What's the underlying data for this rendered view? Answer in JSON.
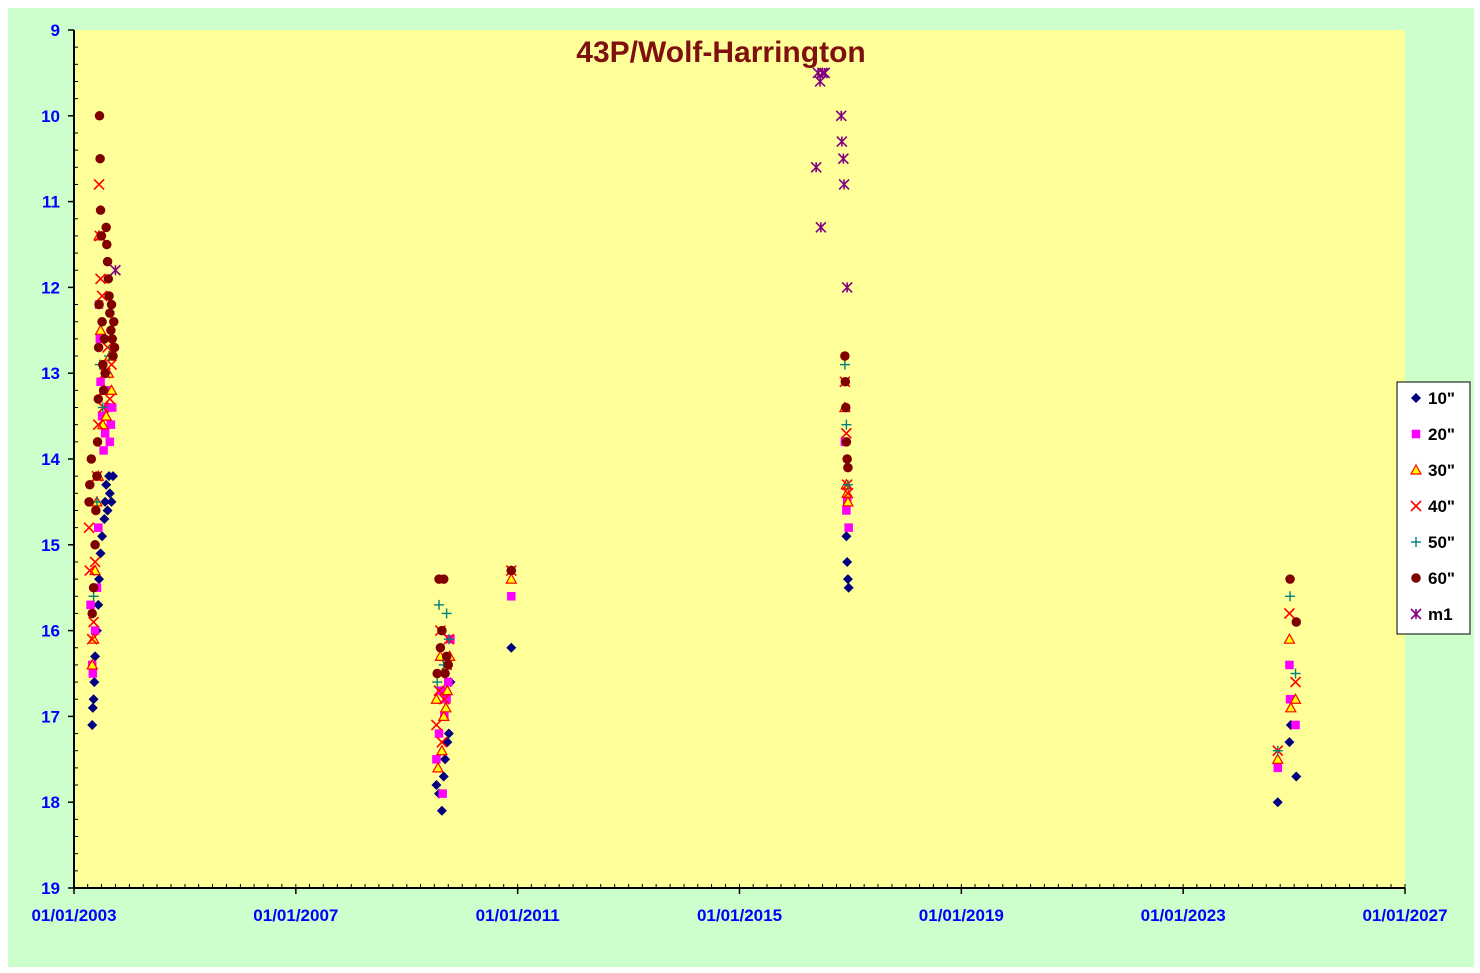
{
  "colors": {
    "outer_background": "#ccffcc",
    "plot_background": "#ffff99",
    "title": "#7f1010",
    "tick_labels": "#0000ff",
    "axis": "#000000"
  },
  "chart_data": {
    "type": "scatter",
    "title": "43P/Wolf-Harrington",
    "xlabel": "",
    "ylabel": "",
    "x_axis": {
      "type": "date",
      "range": [
        "2003-01-01",
        "2027-01-01"
      ],
      "ticks": [
        "2003-01-01",
        "2007-01-01",
        "2011-01-01",
        "2015-01-01",
        "2019-01-01",
        "2023-01-01",
        "2027-01-01"
      ],
      "tick_labels": [
        "01/01/2003",
        "01/01/2007",
        "01/01/2011",
        "01/01/2015",
        "01/01/2019",
        "01/01/2023",
        "01/01/2027"
      ]
    },
    "y_axis": {
      "reversed": true,
      "range": [
        9,
        19
      ],
      "ticks": [
        9,
        10,
        11,
        12,
        13,
        14,
        15,
        16,
        17,
        18,
        19
      ],
      "tick_labels": [
        "9",
        "10",
        "11",
        "12",
        "13",
        "14",
        "15",
        "16",
        "17",
        "18",
        "19"
      ]
    },
    "grid": false,
    "legend_position": "right",
    "series": [
      {
        "name": "10\"",
        "marker": "diamond",
        "color": "#000080",
        "points": [
          [
            "2003-05-01",
            17.1
          ],
          [
            "2003-05-05",
            16.9
          ],
          [
            "2003-05-10",
            16.8
          ],
          [
            "2003-05-15",
            16.6
          ],
          [
            "2003-05-20",
            16.3
          ],
          [
            "2003-06-01",
            16.0
          ],
          [
            "2003-06-10",
            15.7
          ],
          [
            "2003-06-15",
            15.4
          ],
          [
            "2003-06-25",
            15.1
          ],
          [
            "2003-07-05",
            14.9
          ],
          [
            "2003-07-20",
            14.7
          ],
          [
            "2003-07-25",
            14.5
          ],
          [
            "2003-08-01",
            14.3
          ],
          [
            "2003-08-10",
            14.6
          ],
          [
            "2003-08-20",
            14.2
          ],
          [
            "2003-08-25",
            14.4
          ],
          [
            "2003-09-05",
            14.5
          ],
          [
            "2003-09-15",
            14.2
          ],
          [
            "2009-07-15",
            17.8
          ],
          [
            "2009-08-01",
            17.9
          ],
          [
            "2009-08-20",
            18.1
          ],
          [
            "2009-09-01",
            17.7
          ],
          [
            "2009-09-10",
            17.5
          ],
          [
            "2009-09-25",
            17.3
          ],
          [
            "2009-10-05",
            17.2
          ],
          [
            "2009-10-15",
            16.6
          ],
          [
            "2010-11-20",
            16.2
          ],
          [
            "2016-12-05",
            14.9
          ],
          [
            "2016-12-10",
            15.2
          ],
          [
            "2016-12-15",
            15.4
          ],
          [
            "2016-12-20",
            15.5
          ],
          [
            "2024-09-15",
            18.0
          ],
          [
            "2024-12-01",
            17.3
          ],
          [
            "2024-12-10",
            17.1
          ],
          [
            "2025-01-15",
            17.7
          ]
        ]
      },
      {
        "name": "20\"",
        "marker": "square",
        "color": "#ff00ff",
        "points": [
          [
            "2003-04-20",
            15.7
          ],
          [
            "2003-05-01",
            16.4
          ],
          [
            "2003-05-05",
            16.5
          ],
          [
            "2003-05-20",
            16.0
          ],
          [
            "2003-06-01",
            15.5
          ],
          [
            "2003-06-10",
            14.8
          ],
          [
            "2003-06-15",
            12.2
          ],
          [
            "2003-06-20",
            12.6
          ],
          [
            "2003-06-25",
            13.1
          ],
          [
            "2003-07-05",
            13.5
          ],
          [
            "2003-07-15",
            13.9
          ],
          [
            "2003-07-25",
            13.7
          ],
          [
            "2003-08-01",
            13.2
          ],
          [
            "2003-08-15",
            13.4
          ],
          [
            "2003-08-25",
            13.8
          ],
          [
            "2003-09-01",
            13.6
          ],
          [
            "2003-09-10",
            13.4
          ],
          [
            "2009-07-15",
            17.5
          ],
          [
            "2009-08-01",
            17.2
          ],
          [
            "2009-08-15",
            16.7
          ],
          [
            "2009-08-25",
            17.9
          ],
          [
            "2009-09-05",
            17.0
          ],
          [
            "2009-09-20",
            16.8
          ],
          [
            "2009-10-01",
            16.6
          ],
          [
            "2009-10-15",
            16.1
          ],
          [
            "2010-11-20",
            15.6
          ],
          [
            "2016-11-25",
            13.8
          ],
          [
            "2016-12-05",
            14.6
          ],
          [
            "2016-12-10",
            14.5
          ],
          [
            "2016-12-20",
            14.8
          ],
          [
            "2024-09-15",
            17.6
          ],
          [
            "2024-12-01",
            16.4
          ],
          [
            "2024-12-05",
            16.8
          ],
          [
            "2025-01-10",
            17.1
          ]
        ]
      },
      {
        "name": "30\"",
        "marker": "triangle",
        "color": "#ffff00",
        "stroke": "#ff0000",
        "points": [
          [
            "2003-05-01",
            16.4
          ],
          [
            "2003-05-10",
            16.1
          ],
          [
            "2003-05-20",
            15.3
          ],
          [
            "2003-06-01",
            14.5
          ],
          [
            "2003-06-10",
            14.2
          ],
          [
            "2003-06-15",
            11.4
          ],
          [
            "2003-06-25",
            12.5
          ],
          [
            "2003-07-10",
            13.6
          ],
          [
            "2003-07-20",
            13.2
          ],
          [
            "2003-08-01",
            13.5
          ],
          [
            "2003-08-15",
            13.0
          ],
          [
            "2003-08-25",
            12.8
          ],
          [
            "2003-09-05",
            13.2
          ],
          [
            "2009-07-15",
            16.8
          ],
          [
            "2009-07-25",
            17.6
          ],
          [
            "2009-08-10",
            16.3
          ],
          [
            "2009-08-20",
            17.4
          ],
          [
            "2009-09-01",
            17.0
          ],
          [
            "2009-09-15",
            16.9
          ],
          [
            "2009-09-25",
            16.7
          ],
          [
            "2009-10-10",
            16.3
          ],
          [
            "2010-11-20",
            15.4
          ],
          [
            "2016-11-25",
            13.4
          ],
          [
            "2016-12-05",
            14.3
          ],
          [
            "2016-12-10",
            14.4
          ],
          [
            "2016-12-15",
            14.5
          ],
          [
            "2024-09-15",
            17.5
          ],
          [
            "2024-12-01",
            16.1
          ],
          [
            "2024-12-10",
            16.9
          ],
          [
            "2025-01-10",
            16.8
          ]
        ]
      },
      {
        "name": "40\"",
        "marker": "x",
        "color": "#ff0000",
        "points": [
          [
            "2003-04-10",
            14.8
          ],
          [
            "2003-04-15",
            15.3
          ],
          [
            "2003-05-01",
            16.1
          ],
          [
            "2003-05-10",
            15.9
          ],
          [
            "2003-05-20",
            15.2
          ],
          [
            "2003-06-01",
            14.2
          ],
          [
            "2003-06-10",
            13.6
          ],
          [
            "2003-06-15",
            10.8
          ],
          [
            "2003-06-20",
            11.4
          ],
          [
            "2003-06-25",
            11.9
          ],
          [
            "2003-07-05",
            12.1
          ],
          [
            "2003-07-15",
            13.4
          ],
          [
            "2003-07-25",
            13.0
          ],
          [
            "2003-08-10",
            12.7
          ],
          [
            "2003-08-25",
            13.3
          ],
          [
            "2003-09-05",
            12.9
          ],
          [
            "2009-07-15",
            17.1
          ],
          [
            "2009-08-01",
            16.7
          ],
          [
            "2009-08-10",
            16.0
          ],
          [
            "2009-08-20",
            17.3
          ],
          [
            "2009-09-05",
            16.8
          ],
          [
            "2009-09-20",
            16.4
          ],
          [
            "2009-10-05",
            16.1
          ],
          [
            "2010-11-20",
            15.3
          ],
          [
            "2016-11-25",
            13.1
          ],
          [
            "2016-12-05",
            13.7
          ],
          [
            "2016-12-10",
            14.3
          ],
          [
            "2016-12-15",
            14.4
          ],
          [
            "2024-09-15",
            17.4
          ],
          [
            "2024-12-01",
            15.8
          ],
          [
            "2025-01-10",
            16.6
          ]
        ]
      },
      {
        "name": "50\"",
        "marker": "plus",
        "color": "#008080",
        "points": [
          [
            "2003-05-10",
            15.6
          ],
          [
            "2003-06-01",
            14.5
          ],
          [
            "2003-06-20",
            12.9
          ],
          [
            "2003-07-10",
            13.4
          ],
          [
            "2003-08-01",
            13.0
          ],
          [
            "2003-08-20",
            12.8
          ],
          [
            "2003-09-10",
            12.7
          ],
          [
            "2009-07-20",
            16.6
          ],
          [
            "2009-08-01",
            15.7
          ],
          [
            "2009-09-01",
            16.4
          ],
          [
            "2009-09-20",
            15.8
          ],
          [
            "2009-10-05",
            16.1
          ],
          [
            "2010-11-20",
            15.3
          ],
          [
            "2016-11-25",
            12.9
          ],
          [
            "2016-12-05",
            13.6
          ],
          [
            "2016-12-15",
            14.3
          ],
          [
            "2024-09-15",
            17.4
          ],
          [
            "2024-12-05",
            15.6
          ],
          [
            "2025-01-10",
            16.5
          ]
        ]
      },
      {
        "name": "60\"",
        "marker": "circle",
        "color": "#800000",
        "points": [
          [
            "2003-04-10",
            14.5
          ],
          [
            "2003-04-15",
            14.3
          ],
          [
            "2003-04-25",
            14.0
          ],
          [
            "2003-05-01",
            15.8
          ],
          [
            "2003-05-10",
            15.5
          ],
          [
            "2003-05-20",
            15.0
          ],
          [
            "2003-05-25",
            14.6
          ],
          [
            "2003-06-01",
            14.2
          ],
          [
            "2003-06-05",
            13.8
          ],
          [
            "2003-06-10",
            13.3
          ],
          [
            "2003-06-12",
            12.7
          ],
          [
            "2003-06-15",
            12.2
          ],
          [
            "2003-06-18",
            10.0
          ],
          [
            "2003-06-22",
            10.5
          ],
          [
            "2003-06-25",
            11.1
          ],
          [
            "2003-07-01",
            11.4
          ],
          [
            "2003-07-05",
            12.4
          ],
          [
            "2003-07-10",
            12.9
          ],
          [
            "2003-07-15",
            13.2
          ],
          [
            "2003-07-20",
            12.6
          ],
          [
            "2003-07-25",
            13.0
          ],
          [
            "2003-08-01",
            11.3
          ],
          [
            "2003-08-05",
            11.5
          ],
          [
            "2003-08-10",
            11.7
          ],
          [
            "2003-08-15",
            11.9
          ],
          [
            "2003-08-20",
            12.1
          ],
          [
            "2003-08-25",
            12.3
          ],
          [
            "2003-09-01",
            12.5
          ],
          [
            "2003-09-05",
            12.2
          ],
          [
            "2003-09-10",
            12.6
          ],
          [
            "2003-09-15",
            12.8
          ],
          [
            "2003-09-20",
            12.4
          ],
          [
            "2003-09-25",
            12.7
          ],
          [
            "2009-07-20",
            16.5
          ],
          [
            "2009-08-01",
            15.4
          ],
          [
            "2009-08-10",
            16.2
          ],
          [
            "2009-08-20",
            16.0
          ],
          [
            "2009-09-01",
            15.4
          ],
          [
            "2009-09-10",
            16.5
          ],
          [
            "2009-09-20",
            16.3
          ],
          [
            "2009-10-01",
            16.4
          ],
          [
            "2010-11-20",
            15.3
          ],
          [
            "2016-11-25",
            12.8
          ],
          [
            "2016-11-28",
            13.1
          ],
          [
            "2016-12-01",
            13.4
          ],
          [
            "2016-12-05",
            13.8
          ],
          [
            "2016-12-10",
            14.0
          ],
          [
            "2016-12-15",
            14.1
          ],
          [
            "2024-12-05",
            15.4
          ],
          [
            "2025-01-15",
            15.9
          ]
        ]
      },
      {
        "name": "m1",
        "marker": "star",
        "color": "#800080",
        "points": [
          [
            "2003-10-01",
            11.8
          ],
          [
            "2016-06-01",
            9.5
          ],
          [
            "2016-06-15",
            9.6
          ],
          [
            "2016-07-01",
            9.5
          ],
          [
            "2016-07-15",
            9.5
          ],
          [
            "2016-05-20",
            10.6
          ],
          [
            "2016-06-20",
            11.3
          ],
          [
            "2016-11-01",
            10.0
          ],
          [
            "2016-11-05",
            10.3
          ],
          [
            "2016-11-15",
            10.5
          ],
          [
            "2016-11-20",
            10.8
          ],
          [
            "2016-12-10",
            12.0
          ]
        ]
      }
    ]
  }
}
